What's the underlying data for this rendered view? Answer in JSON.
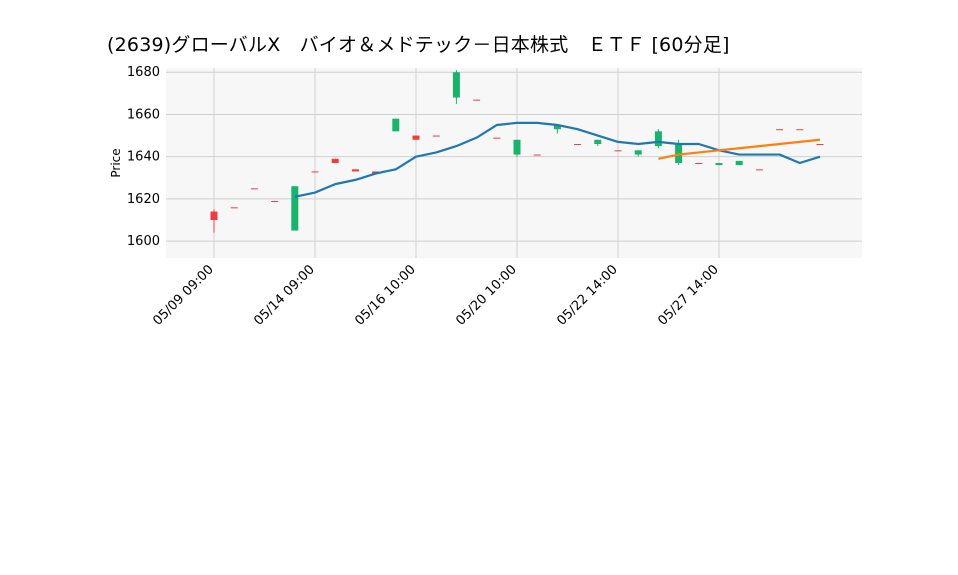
{
  "chart_data": {
    "type": "candlestick",
    "title": "(2639)グローバルX　バイオ＆メドテック－日本株式　ＥＴＦ [60分足]",
    "x_tick_labels": [
      "05/09 09:00",
      "05/14 09:00",
      "05/16 10:00",
      "05/20 10:00",
      "05/22 14:00",
      "05/27 14:00"
    ],
    "x_tick_index": [
      0,
      5,
      10,
      15,
      20,
      25
    ],
    "n_bars": 31,
    "colors": {
      "up": "#ef3d3d",
      "down": "#19b36b",
      "ma_short": "#1f77b4",
      "ma_long": "#ff7f0e",
      "macd": "#b000c0",
      "signal": "#00c4c4",
      "hist_pos": "#ff0000",
      "hist_neg": "#0000ff",
      "rsi": "#1f77b4",
      "vol_up": "#ff6a6a",
      "vol_down": "#4cc38a"
    },
    "panels": {
      "price": {
        "ylabel": "Price",
        "ylim": [
          1592,
          1682
        ],
        "ticks": [
          1600,
          1620,
          1640,
          1660,
          1680
        ],
        "candles": [
          {
            "o": 1610,
            "h": 1615,
            "l": 1604,
            "c": 1614
          },
          {
            "o": 1616,
            "h": 1616,
            "l": 1616,
            "c": 1616
          },
          {
            "o": 1625,
            "h": 1625,
            "l": 1625,
            "c": 1625
          },
          {
            "o": 1619,
            "h": 1619,
            "l": 1619,
            "c": 1619
          },
          {
            "o": 1626,
            "h": 1626,
            "l": 1605,
            "c": 1605
          },
          {
            "o": 1633,
            "h": 1633,
            "l": 1633,
            "c": 1633
          },
          {
            "o": 1637,
            "h": 1639,
            "l": 1637,
            "c": 1639
          },
          {
            "o": 1633,
            "h": 1634,
            "l": 1633,
            "c": 1634
          },
          {
            "o": 1632,
            "h": 1633,
            "l": 1632,
            "c": 1633
          },
          {
            "o": 1658,
            "h": 1658,
            "l": 1652,
            "c": 1652
          },
          {
            "o": 1648,
            "h": 1650,
            "l": 1648,
            "c": 1650
          },
          {
            "o": 1650,
            "h": 1650,
            "l": 1650,
            "c": 1650
          },
          {
            "o": 1680,
            "h": 1681,
            "l": 1665,
            "c": 1668
          },
          {
            "o": 1667,
            "h": 1667,
            "l": 1667,
            "c": 1667
          },
          {
            "o": 1649,
            "h": 1649,
            "l": 1649,
            "c": 1649
          },
          {
            "o": 1648,
            "h": 1648,
            "l": 1640,
            "c": 1641
          },
          {
            "o": 1641,
            "h": 1641,
            "l": 1641,
            "c": 1641
          },
          {
            "o": 1655,
            "h": 1655,
            "l": 1651,
            "c": 1653
          },
          {
            "o": 1646,
            "h": 1646,
            "l": 1646,
            "c": 1646
          },
          {
            "o": 1648,
            "h": 1648,
            "l": 1645,
            "c": 1646
          },
          {
            "o": 1643,
            "h": 1643,
            "l": 1643,
            "c": 1643
          },
          {
            "o": 1643,
            "h": 1643,
            "l": 1640,
            "c": 1641
          },
          {
            "o": 1652,
            "h": 1653,
            "l": 1644,
            "c": 1645
          },
          {
            "o": 1646,
            "h": 1648,
            "l": 1636,
            "c": 1637
          },
          {
            "o": 1637,
            "h": 1637,
            "l": 1637,
            "c": 1637
          },
          {
            "o": 1637,
            "h": 1637,
            "l": 1636,
            "c": 1636
          },
          {
            "o": 1638,
            "h": 1638,
            "l": 1636,
            "c": 1636
          },
          {
            "o": 1634,
            "h": 1634,
            "l": 1634,
            "c": 1634
          },
          {
            "o": 1653,
            "h": 1653,
            "l": 1653,
            "c": 1653
          },
          {
            "o": 1653,
            "h": 1653,
            "l": 1653,
            "c": 1653
          },
          {
            "o": 1646,
            "h": 1646,
            "l": 1646,
            "c": 1646
          }
        ],
        "ma_short": [
          null,
          null,
          null,
          null,
          1621,
          1623,
          1627,
          1629,
          1632,
          1634,
          1640,
          1642,
          1645,
          1649,
          1655,
          1656,
          1656,
          1655,
          1653,
          1650,
          1647,
          1646,
          1647,
          1646,
          1646,
          1643,
          1641,
          1641,
          1641,
          1637,
          1640
        ],
        "ma_long": [
          null,
          null,
          null,
          null,
          null,
          null,
          null,
          null,
          null,
          null,
          null,
          null,
          null,
          null,
          null,
          null,
          null,
          null,
          null,
          null,
          null,
          null,
          1639,
          1641,
          1642,
          1643,
          1644,
          1645,
          1646,
          1647,
          1648
        ]
      }
    }
  }
}
